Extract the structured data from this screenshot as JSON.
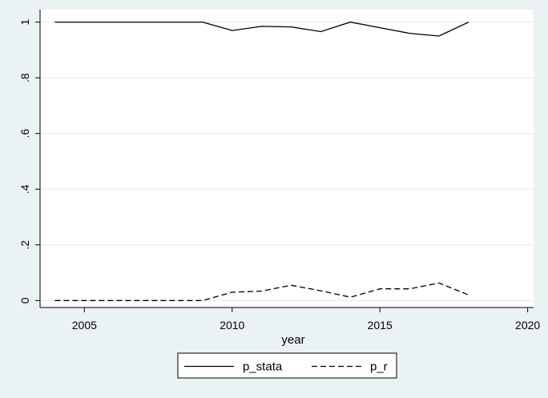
{
  "chart_data": {
    "type": "line",
    "xlabel": "year",
    "ylabel": "",
    "xlim": [
      2003.5,
      2020.2
    ],
    "ylim": [
      -0.025,
      1.045
    ],
    "xticks": [
      2005,
      2010,
      2015,
      2020
    ],
    "xtick_labels": [
      "2005",
      "2010",
      "2015",
      "2020"
    ],
    "yticks": [
      0,
      0.2,
      0.4,
      0.6,
      0.8,
      1
    ],
    "ytick_labels": [
      "0",
      ".2",
      ".4",
      ".6",
      ".8",
      "1"
    ],
    "grid": true,
    "legend": "bottom",
    "x": [
      2004,
      2005,
      2006,
      2007,
      2008,
      2009,
      2010,
      2011,
      2012,
      2013,
      2014,
      2015,
      2016,
      2017,
      2018
    ],
    "series": [
      {
        "name": "p_stata",
        "style": "solid",
        "values": [
          1,
          1,
          1,
          1,
          1,
          1,
          0.97,
          0.985,
          0.983,
          0.966,
          1,
          0.98,
          0.96,
          0.95,
          1
        ]
      },
      {
        "name": "p_r",
        "style": "dashed",
        "values": [
          0,
          0,
          0,
          0,
          0,
          0,
          0.03,
          0.034,
          0.055,
          0.035,
          0.012,
          0.042,
          0.042,
          0.063,
          0.02
        ]
      }
    ],
    "colors": {
      "background": "#eaf2f3",
      "plot_area": "#ffffff",
      "grid": "#e6e6e6",
      "line": "#000000"
    }
  }
}
